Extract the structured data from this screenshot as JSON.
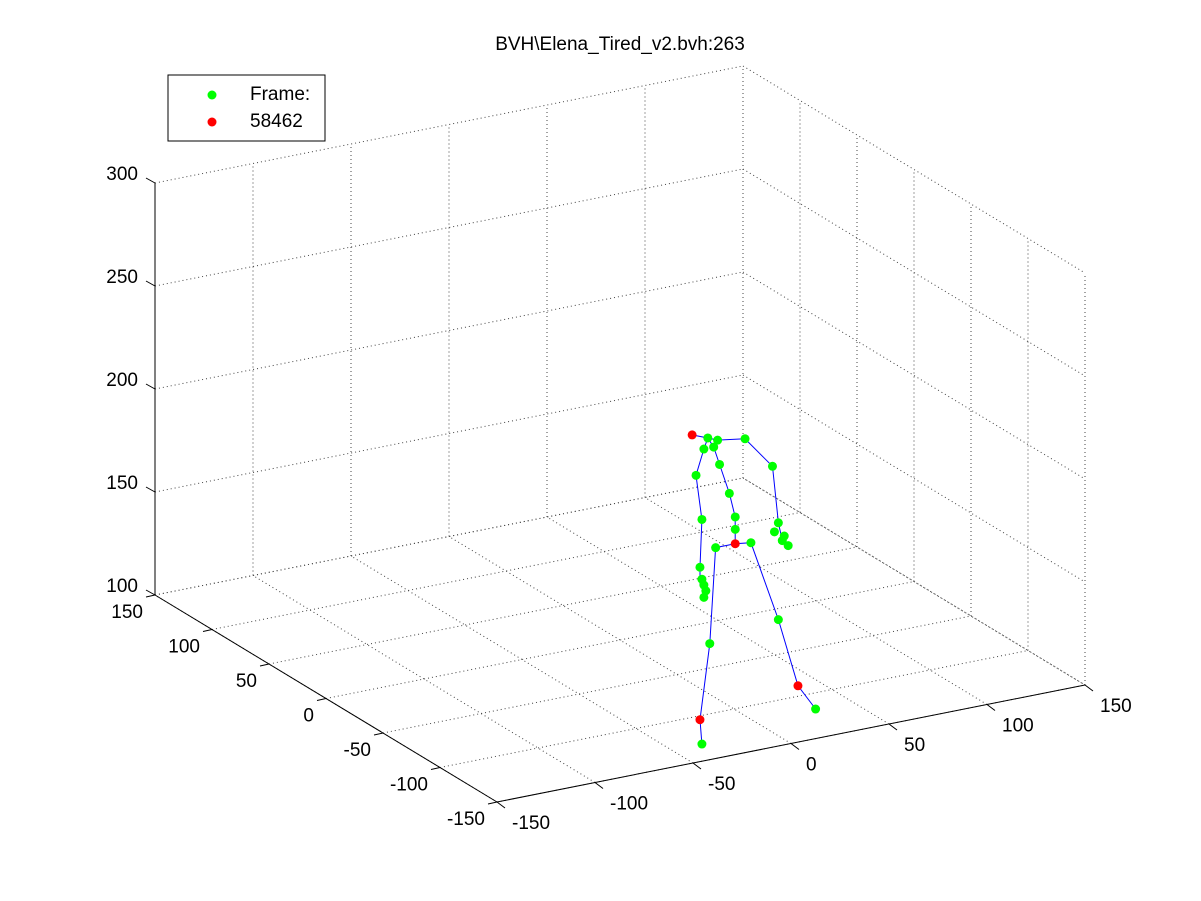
{
  "chart_data": {
    "type": "scatter3d",
    "title": "BVH\\Elena_Tired_v2.bvh:263",
    "xlim": [
      -150,
      150
    ],
    "xticks": [
      -150,
      -100,
      -50,
      0,
      50,
      100,
      150
    ],
    "ylim": [
      -150,
      150
    ],
    "yticks": [
      -150,
      -100,
      -50,
      0,
      50,
      100,
      150
    ],
    "zlim": [
      100,
      300
    ],
    "zticks": [
      100,
      150,
      200,
      250,
      300
    ],
    "grid": true,
    "legend": "northwest",
    "series": [
      {
        "name": "Frame:",
        "color": "#00ff00",
        "x": [
          -25,
          -20,
          -6,
          -27,
          -22,
          -19,
          -31,
          8,
          -14,
          -28,
          -11,
          -11,
          -3,
          11,
          9,
          14,
          16,
          13,
          -21,
          -29,
          -28,
          -27,
          -27,
          -26,
          11,
          -24,
          30,
          -28
        ],
        "y": [
          -120,
          -120,
          -120,
          -120,
          -120,
          -120,
          -120,
          -120,
          -120,
          -120,
          -120,
          -120,
          -120,
          -120,
          -120,
          -120,
          -120,
          -120,
          -120,
          -120,
          -120,
          -120,
          -120,
          -120,
          -120,
          -120,
          -120,
          -120
        ],
        "z": [
          243,
          241,
          239,
          238,
          238,
          229,
          226,
          223,
          214,
          204,
          202,
          196,
          188,
          195,
          191,
          188,
          183,
          186,
          189,
          181,
          175,
          172,
          166,
          169,
          148,
          143,
          101,
          95
        ]
      },
      {
        "name": "58462",
        "color": "#ff0000",
        "x": [
          -33,
          -11,
          21,
          -29
        ],
        "y": [
          -120,
          -120,
          -120,
          -120
        ],
        "z": [
          246,
          189,
          114,
          107
        ]
      },
      {
        "type": "line",
        "color": "#0000ff",
        "x": [
          -28,
          -29,
          -24,
          -21,
          -11,
          -3,
          11,
          21,
          30,
          null,
          -11,
          -11,
          -11,
          -14,
          -19,
          -22,
          -25,
          -33,
          null,
          -29,
          -29,
          -28,
          -31,
          -27,
          -25,
          -20,
          -6,
          8,
          11,
          13
        ],
        "y": [
          -120,
          -120,
          -120,
          -120,
          -120,
          -120,
          -120,
          -120,
          -120,
          null,
          -120,
          -120,
          -120,
          -120,
          -120,
          -120,
          -120,
          -120,
          null,
          -120,
          -120,
          -120,
          -120,
          -120,
          -120,
          -120,
          -120,
          -120,
          -120,
          -120
        ],
        "z": [
          95,
          107,
          143,
          189,
          189,
          188,
          148,
          114,
          101,
          null,
          189,
          196,
          202,
          214,
          229,
          238,
          243,
          246,
          null,
          172,
          181,
          204,
          226,
          238,
          243,
          241,
          239,
          223,
          195,
          186
        ]
      }
    ]
  }
}
